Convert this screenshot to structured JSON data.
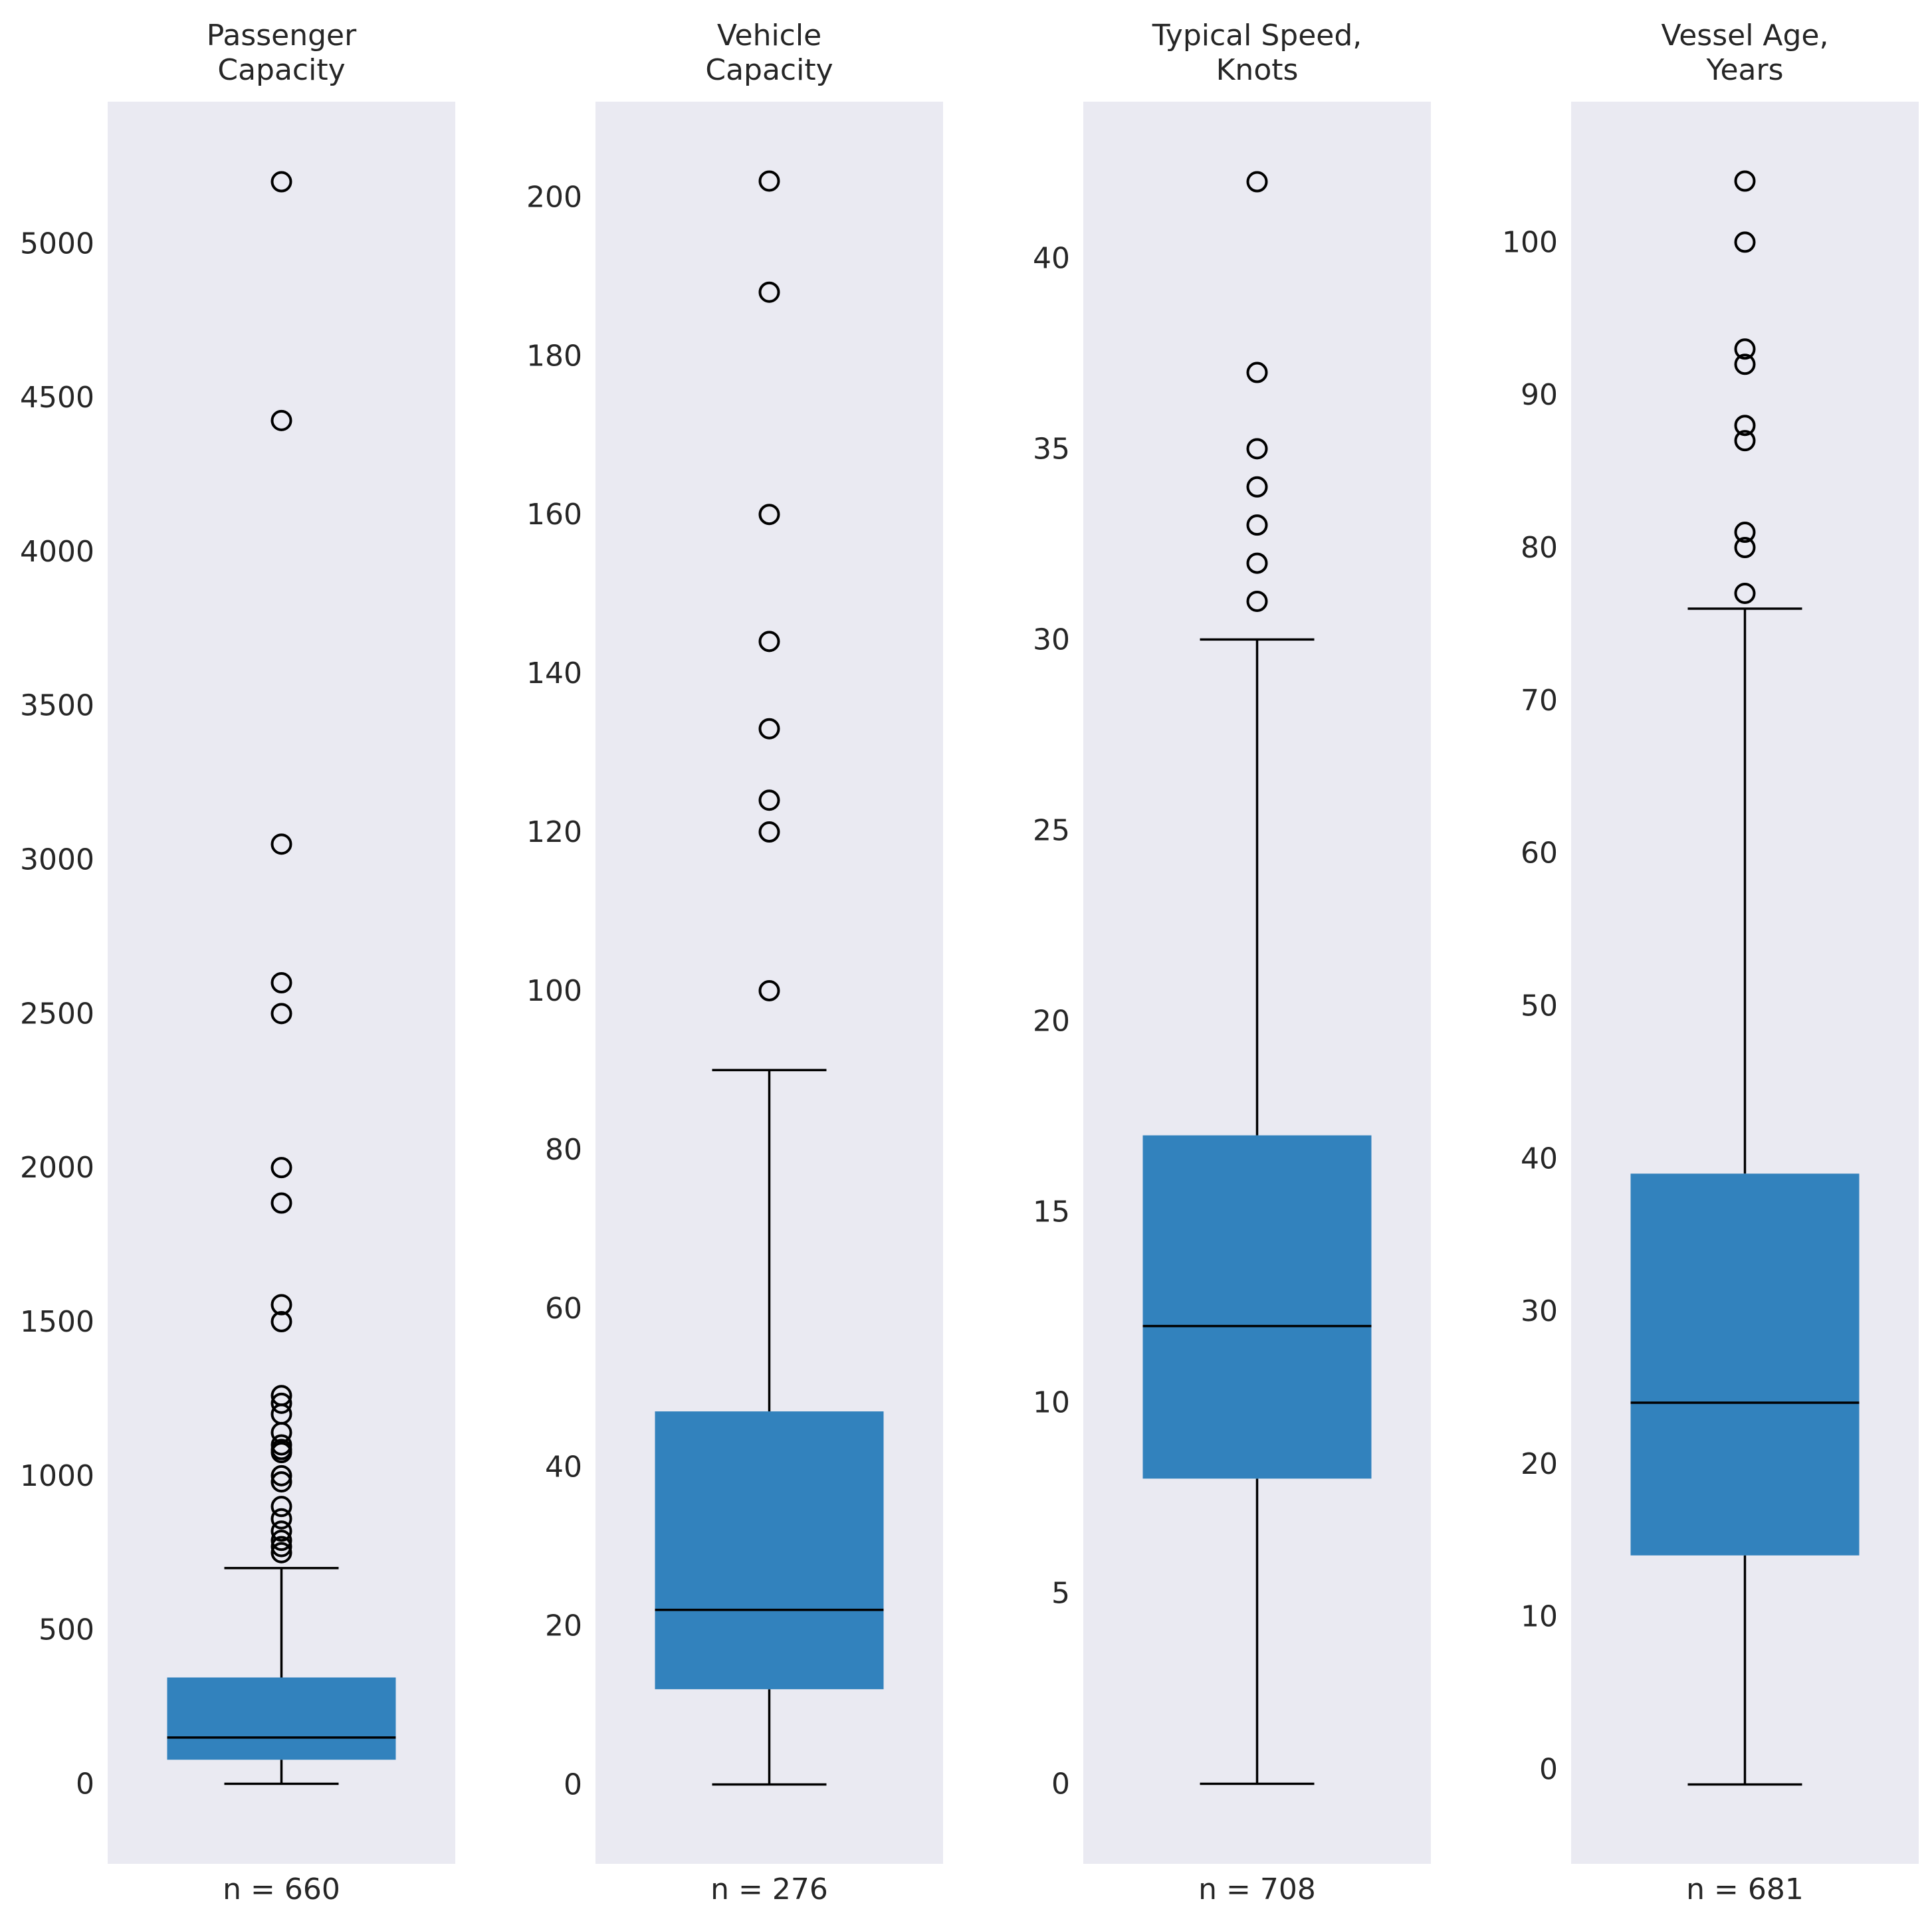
{
  "chart_data": [
    {
      "type": "box",
      "title_lines": [
        "Passenger",
        "Capacity"
      ],
      "n_label": "n = 660",
      "ylim": [
        -260,
        5460
      ],
      "yticks": [
        0,
        500,
        1000,
        1500,
        2000,
        2500,
        3000,
        3500,
        4000,
        4500,
        5000
      ],
      "ytick_labels": [
        "0",
        "500",
        "1000",
        "1500",
        "2000",
        "2500",
        "3000",
        "3500",
        "4000",
        "4500",
        "5000"
      ],
      "whisker_low": 0,
      "q1": 78,
      "median": 150,
      "q3": 345,
      "whisker_high": 700,
      "outliers": [
        5200,
        4425,
        3050,
        2600,
        2500,
        2000,
        1885,
        1555,
        1500,
        1260,
        1235,
        1200,
        1140,
        1100,
        1085,
        1075,
        1000,
        980,
        900,
        860,
        820,
        790,
        770,
        750
      ]
    },
    {
      "type": "box",
      "title_lines": [
        "Vehicle",
        "Capacity"
      ],
      "n_label": "n = 276",
      "ylim": [
        -10,
        212
      ],
      "yticks": [
        0,
        20,
        40,
        60,
        80,
        100,
        120,
        140,
        160,
        180,
        200
      ],
      "ytick_labels": [
        "0",
        "20",
        "40",
        "60",
        "80",
        "100",
        "120",
        "140",
        "160",
        "180",
        "200"
      ],
      "whisker_low": 0,
      "q1": 12,
      "median": 22,
      "q3": 47,
      "whisker_high": 90,
      "outliers": [
        202,
        188,
        160,
        144,
        133,
        124,
        120,
        100
      ]
    },
    {
      "type": "box",
      "title_lines": [
        "Typical Speed,",
        "Knots"
      ],
      "n_label": "n = 708",
      "ylim": [
        -2.1,
        44.1
      ],
      "yticks": [
        0,
        5,
        10,
        15,
        20,
        25,
        30,
        35,
        40
      ],
      "ytick_labels": [
        "0",
        "5",
        "10",
        "15",
        "20",
        "25",
        "30",
        "35",
        "40"
      ],
      "whisker_low": 0,
      "q1": 8,
      "median": 12,
      "q3": 17,
      "whisker_high": 30,
      "outliers": [
        42,
        37,
        35,
        34,
        33,
        32,
        31
      ]
    },
    {
      "type": "box",
      "title_lines": [
        "Vessel Age,",
        "Years"
      ],
      "n_label": "n = 681",
      "ylim": [
        -6.2,
        109.2
      ],
      "yticks": [
        0,
        10,
        20,
        30,
        40,
        50,
        60,
        70,
        80,
        90,
        100
      ],
      "ytick_labels": [
        "0",
        "10",
        "20",
        "30",
        "40",
        "50",
        "60",
        "70",
        "80",
        "90",
        "100"
      ],
      "whisker_low": -1,
      "q1": 14,
      "median": 24,
      "q3": 39,
      "whisker_high": 76,
      "outliers": [
        104,
        100,
        93,
        92,
        88,
        87,
        81,
        80,
        77
      ]
    }
  ],
  "colors": {
    "box_fill": "#3282bd",
    "panel_bg": "#eaeaf2",
    "line": "#000000",
    "text": "#262626"
  }
}
